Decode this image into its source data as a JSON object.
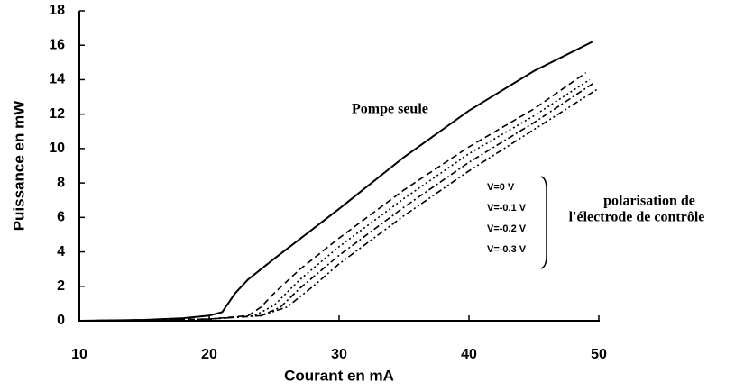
{
  "chart_data": {
    "type": "line",
    "xlabel": "Courant en mA",
    "ylabel": "Puissance en mW",
    "xlim": [
      10,
      50
    ],
    "xticks": [
      10,
      20,
      30,
      40,
      50
    ],
    "ylim": [
      0,
      18
    ],
    "yticks": [
      0,
      2,
      4,
      6,
      8,
      10,
      12,
      14,
      16,
      18
    ],
    "series": [
      {
        "name": "Pompe seule",
        "color": "#000000",
        "dash": "none",
        "x": [
          10,
          15,
          18,
          20,
          21,
          22,
          23,
          25,
          30,
          35,
          40,
          45,
          49.5
        ],
        "values": [
          0,
          0.05,
          0.15,
          0.3,
          0.5,
          1.6,
          2.4,
          3.6,
          6.5,
          9.5,
          12.2,
          14.5,
          16.2
        ]
      },
      {
        "name": "V=0 V",
        "color": "#000000",
        "dash": "7 4",
        "x": [
          10,
          20,
          23,
          24,
          25,
          27,
          30,
          35,
          40,
          45,
          49
        ],
        "values": [
          0,
          0.1,
          0.3,
          0.8,
          1.6,
          3,
          4.8,
          7.6,
          10.1,
          12.3,
          14.4
        ]
      },
      {
        "name": "V=-0.1 V",
        "color": "#000000",
        "dash": "2 3",
        "x": [
          10,
          20,
          23.5,
          25,
          27,
          30,
          35,
          40,
          45,
          49.3
        ],
        "values": [
          0,
          0.1,
          0.3,
          0.9,
          2.4,
          4.3,
          7.1,
          9.7,
          11.9,
          14
        ]
      },
      {
        "name": "V=-0.2 V",
        "color": "#000000",
        "dash": "7 3 2 3",
        "x": [
          10,
          20,
          24,
          25.5,
          27,
          30,
          35,
          40,
          45,
          49.6
        ],
        "values": [
          0,
          0.1,
          0.3,
          0.8,
          1.9,
          3.8,
          6.6,
          9.2,
          11.5,
          13.8
        ]
      },
      {
        "name": "V=-0.3 V",
        "color": "#000000",
        "dash": "7 3 2 3 2 3",
        "x": [
          10,
          20,
          24,
          26,
          28,
          30,
          35,
          40,
          45,
          50
        ],
        "values": [
          0,
          0.1,
          0.3,
          0.8,
          2,
          3.3,
          6.1,
          8.7,
          11.1,
          13.5
        ]
      }
    ],
    "annotation": [
      "polarisation de",
      "l'électrode de contrôle"
    ]
  }
}
